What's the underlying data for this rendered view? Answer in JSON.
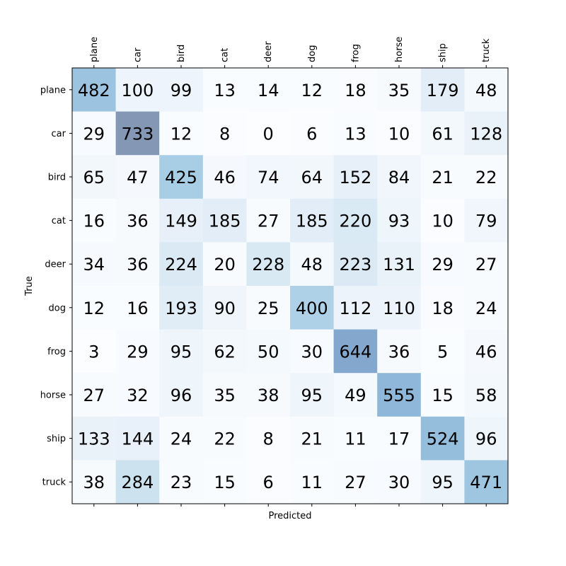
{
  "chart_data": {
    "type": "heatmap",
    "title": "",
    "xlabel": "Predicted",
    "ylabel": "True",
    "x_tick_position": "top",
    "colormap": "Blues",
    "color_alpha": 0.5,
    "x_categories": [
      "plane",
      "car",
      "bird",
      "cat",
      "deer",
      "dog",
      "frog",
      "horse",
      "ship",
      "truck"
    ],
    "y_categories": [
      "plane",
      "car",
      "bird",
      "cat",
      "deer",
      "dog",
      "frog",
      "horse",
      "ship",
      "truck"
    ],
    "values": [
      [
        482,
        100,
        99,
        13,
        14,
        12,
        18,
        35,
        179,
        48
      ],
      [
        29,
        733,
        12,
        8,
        0,
        6,
        13,
        10,
        61,
        128
      ],
      [
        65,
        47,
        425,
        46,
        74,
        64,
        152,
        84,
        21,
        22
      ],
      [
        16,
        36,
        149,
        185,
        27,
        185,
        220,
        93,
        10,
        79
      ],
      [
        34,
        36,
        224,
        20,
        228,
        48,
        223,
        131,
        29,
        27
      ],
      [
        12,
        16,
        193,
        90,
        25,
        400,
        112,
        110,
        18,
        24
      ],
      [
        3,
        29,
        95,
        62,
        50,
        30,
        644,
        36,
        5,
        46
      ],
      [
        27,
        32,
        96,
        35,
        38,
        95,
        49,
        555,
        15,
        58
      ],
      [
        133,
        144,
        24,
        22,
        8,
        21,
        11,
        17,
        524,
        96
      ],
      [
        38,
        284,
        23,
        15,
        6,
        11,
        27,
        30,
        95,
        471
      ]
    ],
    "value_range": [
      0,
      733
    ]
  }
}
